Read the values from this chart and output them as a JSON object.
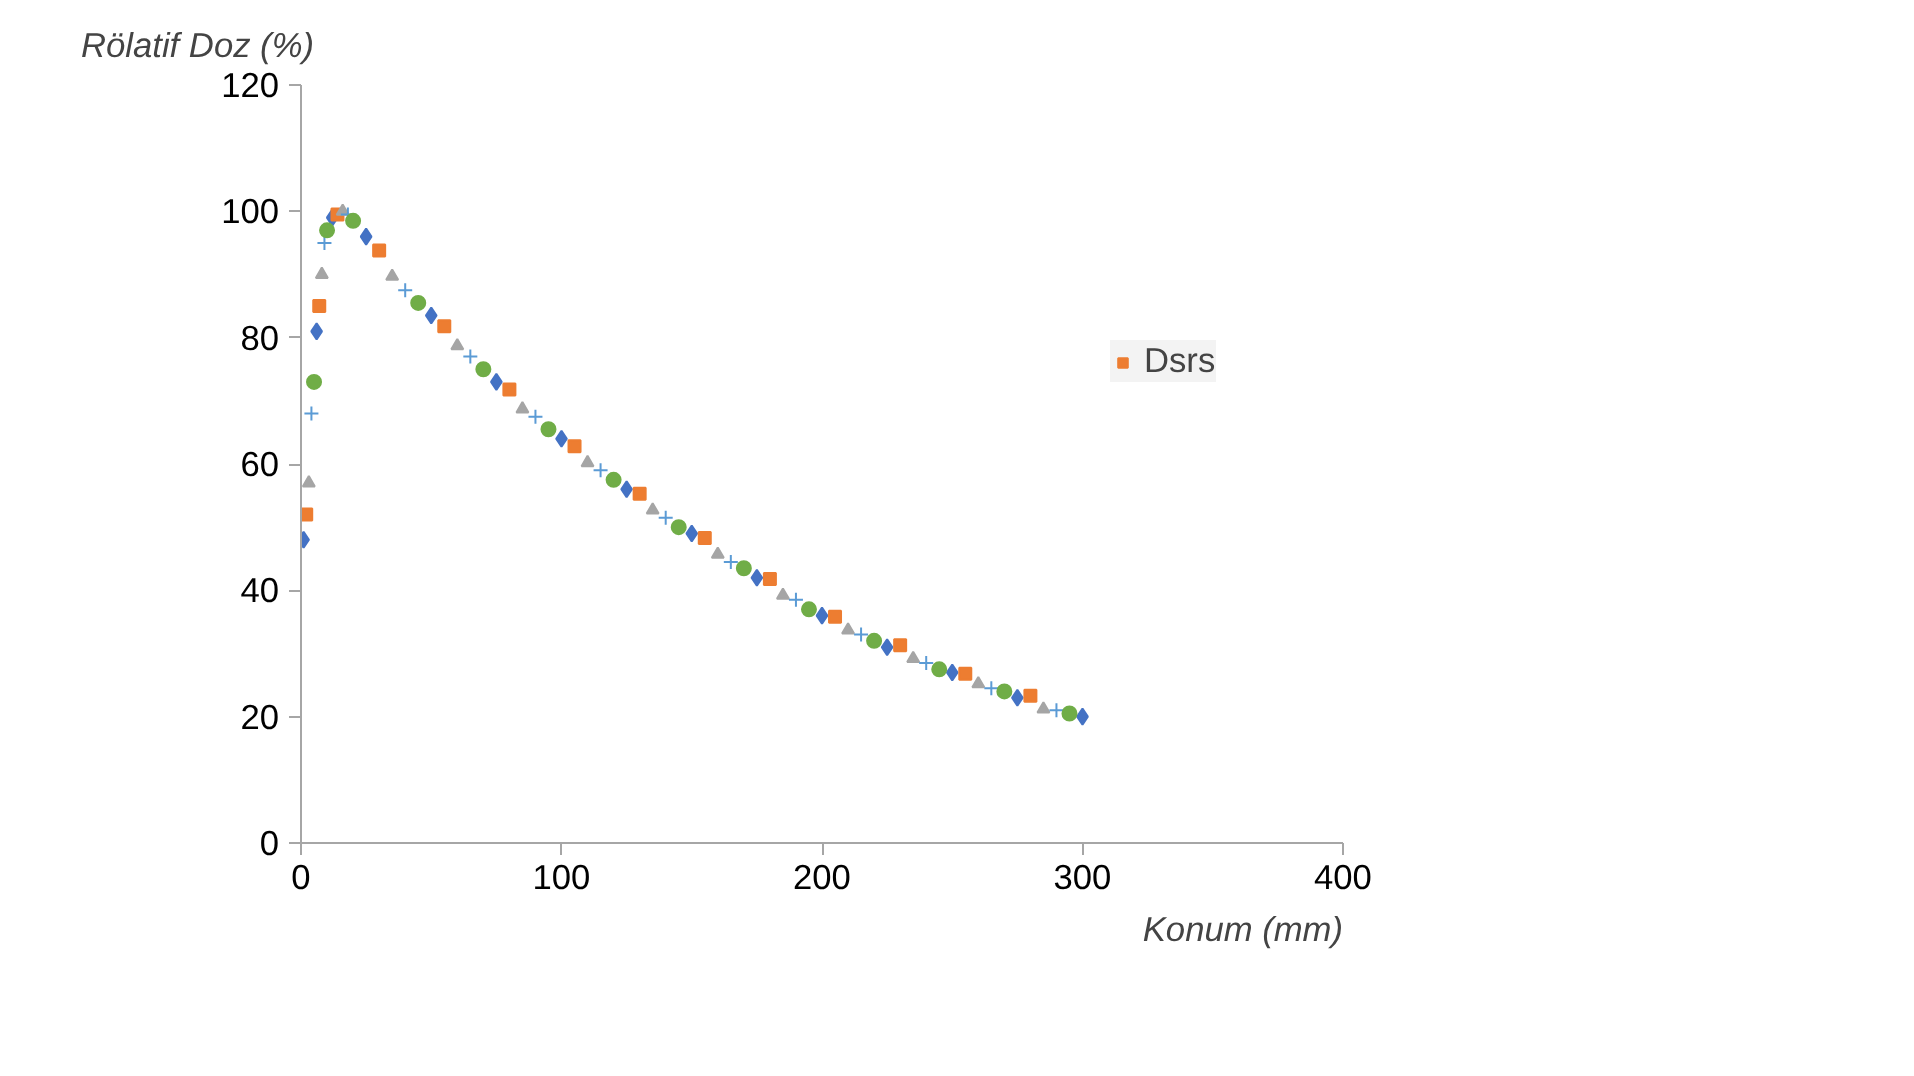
{
  "chart_data": {
    "type": "scatter",
    "xlabel": "Konum (mm)",
    "ylabel": "Rölatif Doz (%)",
    "xlim": [
      0,
      400
    ],
    "xticks": [
      0,
      100,
      200,
      300,
      400
    ],
    "ylim": [
      0,
      120
    ],
    "yticks": [
      0,
      20,
      40,
      60,
      80,
      100,
      120
    ],
    "grid": false,
    "legend": "right",
    "series": [
      {
        "color": "#4472c4",
        "marker": "diamond",
        "x": [
          1,
          6,
          12,
          25,
          50,
          75,
          100,
          125,
          150,
          175,
          200,
          225,
          250,
          275,
          300
        ],
        "values": [
          48,
          81,
          99,
          96,
          83.5,
          73,
          64,
          56,
          49,
          42,
          36,
          31,
          27,
          23,
          20
        ]
      },
      {
        "name": "Dsrs",
        "color": "#ed7d31",
        "marker": "square",
        "x": [
          2,
          7,
          14,
          30,
          55,
          80,
          105,
          130,
          155,
          180,
          205,
          230,
          255,
          280
        ],
        "values": [
          52,
          85,
          99.5,
          93.8,
          81.8,
          71.8,
          62.8,
          55.3,
          48.3,
          41.8,
          35.8,
          31.3,
          26.8,
          23.3
        ]
      },
      {
        "color": "#a5a5a5",
        "marker": "triangle",
        "x": [
          3,
          8,
          16,
          35,
          60,
          85,
          110,
          135,
          160,
          185,
          210,
          235,
          260,
          285
        ],
        "values": [
          57,
          90,
          100,
          89.7,
          78.7,
          68.7,
          60.2,
          52.7,
          45.7,
          39.2,
          33.7,
          29.2,
          25.2,
          21.2
        ]
      },
      {
        "color": "#5b9bd5",
        "marker": "cross",
        "x": [
          4,
          9,
          18,
          40,
          65,
          90,
          115,
          140,
          165,
          190,
          215,
          240,
          265,
          290
        ],
        "values": [
          68,
          95,
          99.5,
          87.5,
          77,
          67.5,
          59,
          51.5,
          44.5,
          38.5,
          33,
          28.5,
          24.5,
          21
        ]
      },
      {
        "color": "#70ad47",
        "marker": "circle",
        "x": [
          5,
          10,
          20,
          45,
          70,
          95,
          120,
          145,
          170,
          195,
          220,
          245,
          270,
          295
        ],
        "values": [
          73,
          97,
          98.5,
          85.5,
          75,
          65.5,
          57.5,
          50,
          43.5,
          37,
          32,
          27.5,
          24,
          20.5
        ]
      }
    ]
  }
}
